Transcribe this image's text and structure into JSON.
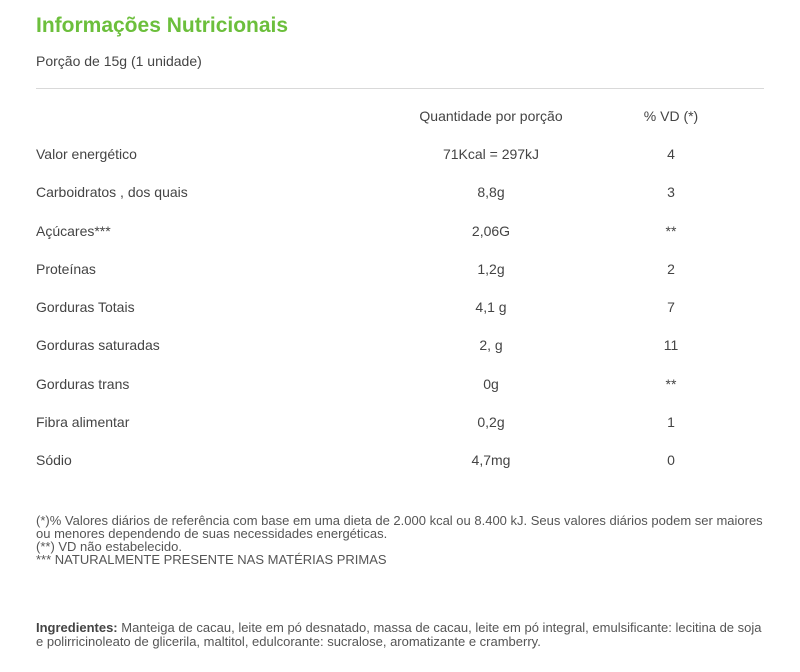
{
  "title": "Informações Nutricionais",
  "portion": "Porção de 15g (1 unidade)",
  "table": {
    "headers": {
      "quantity": "Quantidade por porção",
      "vd": "% VD (*)"
    },
    "rows": [
      {
        "name": "Valor energético",
        "quantity": "71Kcal = 297kJ",
        "vd": "4"
      },
      {
        "name": "Carboidratos , dos quais",
        "quantity": "8,8g",
        "vd": "3"
      },
      {
        "name": "Açúcares***",
        "quantity": "2,06G",
        "vd": "**"
      },
      {
        "name": "Proteínas",
        "quantity": "1,2g",
        "vd": "2"
      },
      {
        "name": "Gorduras Totais",
        "quantity": "4,1 g",
        "vd": "7"
      },
      {
        "name": "Gorduras saturadas",
        "quantity": "2, g",
        "vd": "11"
      },
      {
        "name": "Gorduras trans",
        "quantity": "0g",
        "vd": "**"
      },
      {
        "name": "Fibra alimentar",
        "quantity": "0,2g",
        "vd": "1"
      },
      {
        "name": "Sódio",
        "quantity": "4,7mg",
        "vd": "0"
      }
    ]
  },
  "footnotes": {
    "daily_values": "(*)% Valores diários de referência com base em uma dieta de 2.000 kcal ou 8.400 kJ. Seus valores diários podem ser maiores ou menores dependendo de suas necessidades energéticas.",
    "not_established": "(**) VD não estabelecido.",
    "naturally_present": "*** NATURALMENTE PRESENTE NAS MATÉRIAS PRIMAS"
  },
  "ingredients": {
    "label": "Ingredientes:",
    "text": " Manteiga de cacau, leite em pó desnatado, massa de cacau, leite em pó integral, emulsificante: lecitina de soja e polirricinoleato de glicerila, maltitol, edulcorante: sucralose, aromatizante e cramberry."
  }
}
